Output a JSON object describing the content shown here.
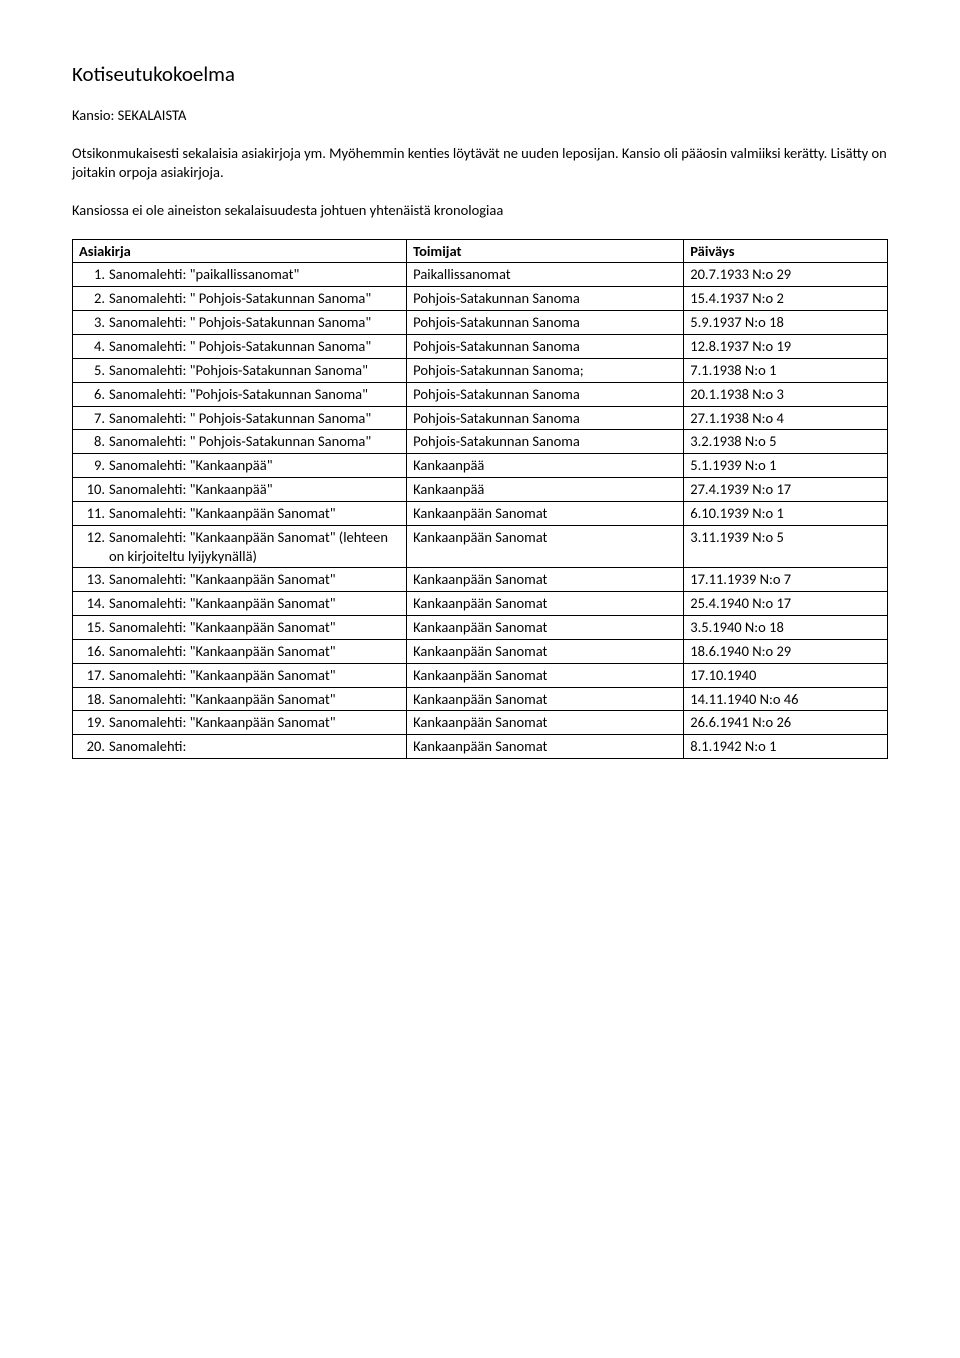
{
  "title": "Kotiseutukokoelma",
  "subtitle": "Kansio: SEKALAISTA",
  "para1": "Otsikonmukaisesti sekalaisia asiakirjoja ym. Myöhemmin kenties löytävät ne uuden leposijan. Kansio oli pääosin valmiiksi kerätty. Lisätty on joitakin orpoja asiakirjoja.",
  "para2": "Kansiossa ei ole aineiston sekalaisuudesta johtuen yhtenäistä kronologiaa",
  "columns": [
    "Asiakirja",
    "Toimijat",
    "Päiväys"
  ],
  "rows": [
    {
      "n": "1.",
      "asiakirja": "Sanomalehti: \"paikallissanomat\"",
      "toimijat": "Paikallissanomat",
      "paivays": "20.7.1933 N:o 29"
    },
    {
      "n": "2.",
      "asiakirja": "Sanomalehti: \" Pohjois-Satakunnan Sanoma\"",
      "toimijat": "Pohjois-Satakunnan Sanoma",
      "paivays": "15.4.1937 N:o 2"
    },
    {
      "n": "3.",
      "asiakirja": "Sanomalehti: \" Pohjois-Satakunnan Sanoma\"",
      "toimijat": "Pohjois-Satakunnan Sanoma",
      "paivays": "5.9.1937 N:o 18"
    },
    {
      "n": "4.",
      "asiakirja": "Sanomalehti: \" Pohjois-Satakunnan Sanoma\"",
      "toimijat": "Pohjois-Satakunnan Sanoma",
      "paivays": "12.8.1937 N:o 19"
    },
    {
      "n": "5.",
      "asiakirja": "Sanomalehti: \"Pohjois-Satakunnan Sanoma\"",
      "toimijat": "Pohjois-Satakunnan Sanoma;",
      "paivays": "7.1.1938 N:o 1"
    },
    {
      "n": "6.",
      "asiakirja": "Sanomalehti: \"Pohjois-Satakunnan Sanoma\"",
      "toimijat": "Pohjois-Satakunnan Sanoma",
      "paivays": "20.1.1938 N:o 3"
    },
    {
      "n": "7.",
      "asiakirja": "Sanomalehti: \" Pohjois-Satakunnan Sanoma\"",
      "toimijat": "Pohjois-Satakunnan Sanoma",
      "paivays": "27.1.1938 N:o 4"
    },
    {
      "n": "8.",
      "asiakirja": "Sanomalehti: \" Pohjois-Satakunnan Sanoma\"",
      "toimijat": "Pohjois-Satakunnan Sanoma",
      "paivays": "3.2.1938 N:o 5"
    },
    {
      "n": "9.",
      "asiakirja": "Sanomalehti: \"Kankaanpää\"",
      "toimijat": "Kankaanpää",
      "paivays": "5.1.1939 N:o 1"
    },
    {
      "n": "10.",
      "asiakirja": "Sanomalehti: \"Kankaanpää\"",
      "toimijat": "Kankaanpää",
      "paivays": "27.4.1939 N:o 17"
    },
    {
      "n": "11.",
      "asiakirja": "Sanomalehti: \"Kankaanpään Sanomat\"",
      "toimijat": "Kankaanpään Sanomat",
      "paivays": "6.10.1939 N:o 1"
    },
    {
      "n": "12.",
      "asiakirja": "Sanomalehti: \"Kankaanpään Sanomat\" (lehteen on kirjoiteltu lyijykynällä)",
      "toimijat": "Kankaanpään Sanomat",
      "paivays": "3.11.1939 N:o 5"
    },
    {
      "n": "13.",
      "asiakirja": "Sanomalehti: \"Kankaanpään Sanomat\"",
      "toimijat": "Kankaanpään Sanomat",
      "paivays": "17.11.1939 N:o 7"
    },
    {
      "n": "14.",
      "asiakirja": "Sanomalehti: \"Kankaanpään Sanomat\"",
      "toimijat": "Kankaanpään Sanomat",
      "paivays": "25.4.1940 N:o 17"
    },
    {
      "n": "15.",
      "asiakirja": "Sanomalehti: \"Kankaanpään Sanomat\"",
      "toimijat": "Kankaanpään Sanomat",
      "paivays": "3.5.1940 N:o 18"
    },
    {
      "n": "16.",
      "asiakirja": "Sanomalehti: \"Kankaanpään Sanomat\"",
      "toimijat": "Kankaanpään Sanomat",
      "paivays": "18.6.1940 N:o 29"
    },
    {
      "n": "17.",
      "asiakirja": "Sanomalehti: \"Kankaanpään Sanomat\"",
      "toimijat": "Kankaanpään Sanomat",
      "paivays": "17.10.1940"
    },
    {
      "n": "18.",
      "asiakirja": "Sanomalehti: \"Kankaanpään Sanomat\"",
      "toimijat": "Kankaanpään Sanomat",
      "paivays": "14.11.1940 N:o 46"
    },
    {
      "n": "19.",
      "asiakirja": "Sanomalehti: \"Kankaanpään Sanomat\"",
      "toimijat": "Kankaanpään Sanomat",
      "paivays": "26.6.1941 N:o 26"
    },
    {
      "n": "20.",
      "asiakirja": "Sanomalehti:",
      "toimijat": "Kankaanpään Sanomat",
      "paivays": "8.1.1942 N:o 1"
    }
  ]
}
